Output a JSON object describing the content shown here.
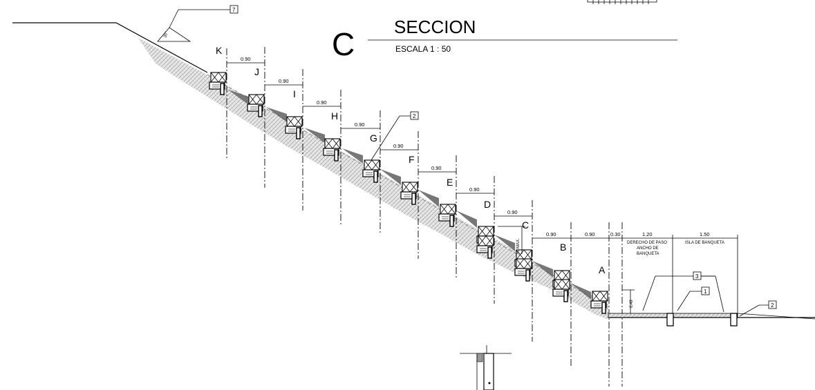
{
  "title": {
    "letter": "C",
    "name": "SECCION",
    "scale": "ESCALA 1 : 50"
  },
  "slope_angle": "30°",
  "step_labels": [
    "K",
    "J",
    "I",
    "H",
    "G",
    "F",
    "E",
    "D",
    "C",
    "B",
    "A"
  ],
  "step_dimensions": [
    "0.90",
    "0.90",
    "0.90",
    "0.90",
    "0.90",
    "0.90",
    "0.90",
    "0.90",
    "0.90",
    "0.90"
  ],
  "bottom_dimensions": {
    "setback": "0.30",
    "sidewalk_width": "1.20",
    "island_width": "1.50",
    "height_a": "0.49",
    "max_c": ".50 MAX."
  },
  "zone_labels": {
    "right_of_way": "DERECHO DE PASO",
    "sidewalk_width_line1": "ANCHO DE",
    "sidewalk_width_line2": "BANQUETA",
    "sidewalk_island": "ISLA DE BANQUETA"
  },
  "callouts": [
    "7",
    "2",
    "3",
    "1",
    "2"
  ]
}
